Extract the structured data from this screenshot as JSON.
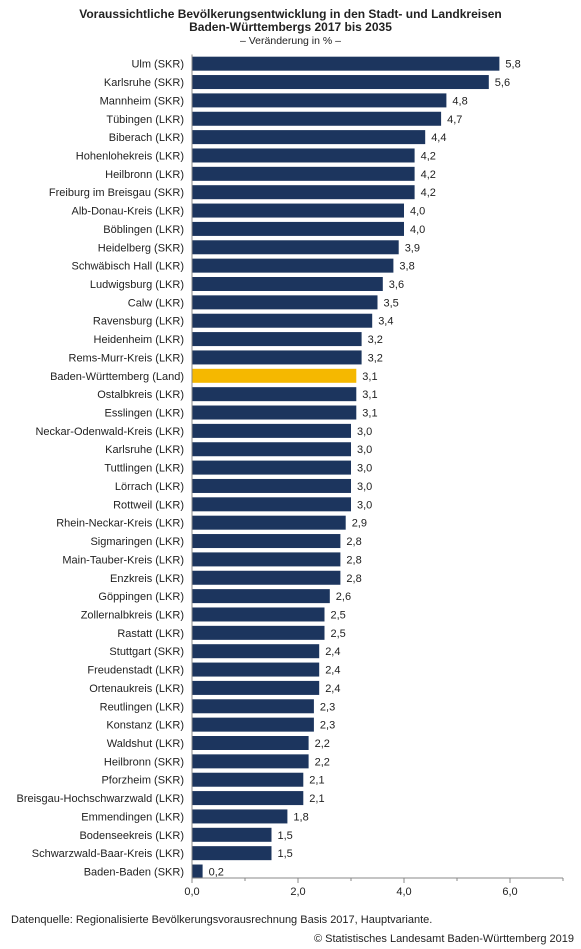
{
  "chart_data": {
    "type": "bar",
    "orientation": "horizontal",
    "title": "Voraussichtliche Bevölkerungsentwicklung in den Stadt- und Landkreisen",
    "title_line2": "Baden-Württembergs 2017 bis 2035",
    "subtitle": "– Veränderung in % –",
    "categories": [
      "Ulm (SKR)",
      "Karlsruhe (SKR)",
      "Mannheim (SKR)",
      "Tübingen (LKR)",
      "Biberach (LKR)",
      "Hohenlohekreis (LKR)",
      "Heilbronn (LKR)",
      "Freiburg im Breisgau (SKR)",
      "Alb-Donau-Kreis (LKR)",
      "Böblingen (LKR)",
      "Heidelberg (SKR)",
      "Schwäbisch Hall (LKR)",
      "Ludwigsburg (LKR)",
      "Calw (LKR)",
      "Ravensburg (LKR)",
      "Heidenheim (LKR)",
      "Rems-Murr-Kreis (LKR)",
      "Baden-Württemberg (Land)",
      "Ostalbkreis (LKR)",
      "Esslingen (LKR)",
      "Neckar-Odenwald-Kreis (LKR)",
      "Karlsruhe (LKR)",
      "Tuttlingen (LKR)",
      "Lörrach (LKR)",
      "Rottweil (LKR)",
      "Rhein-Neckar-Kreis (LKR)",
      "Sigmaringen (LKR)",
      "Main-Tauber-Kreis (LKR)",
      "Enzkreis (LKR)",
      "Göppingen (LKR)",
      "Zollernalbkreis (LKR)",
      "Rastatt (LKR)",
      "Stuttgart (SKR)",
      "Freudenstadt (LKR)",
      "Ortenaukreis (LKR)",
      "Reutlingen (LKR)",
      "Konstanz (LKR)",
      "Waldshut (LKR)",
      "Heilbronn (SKR)",
      "Pforzheim (SKR)",
      "Breisgau-Hochschwarzwald (LKR)",
      "Emmendingen (LKR)",
      "Bodenseekreis (LKR)",
      "Schwarzwald-Baar-Kreis (LKR)",
      "Baden-Baden (SKR)"
    ],
    "values": [
      5.8,
      5.6,
      4.8,
      4.7,
      4.4,
      4.2,
      4.2,
      4.2,
      4.0,
      4.0,
      3.9,
      3.8,
      3.6,
      3.5,
      3.4,
      3.2,
      3.2,
      3.1,
      3.1,
      3.1,
      3.0,
      3.0,
      3.0,
      3.0,
      3.0,
      2.9,
      2.8,
      2.8,
      2.8,
      2.6,
      2.5,
      2.5,
      2.4,
      2.4,
      2.4,
      2.3,
      2.3,
      2.2,
      2.2,
      2.1,
      2.1,
      1.8,
      1.5,
      1.5,
      0.2
    ],
    "value_labels": [
      "5,8",
      "5,6",
      "4,8",
      "4,7",
      "4,4",
      "4,2",
      "4,2",
      "4,2",
      "4,0",
      "4,0",
      "3,9",
      "3,8",
      "3,6",
      "3,5",
      "3,4",
      "3,2",
      "3,2",
      "3,1",
      "3,1",
      "3,1",
      "3,0",
      "3,0",
      "3,0",
      "3,0",
      "3,0",
      "2,9",
      "2,8",
      "2,8",
      "2,8",
      "2,6",
      "2,5",
      "2,5",
      "2,4",
      "2,4",
      "2,4",
      "2,3",
      "2,3",
      "2,2",
      "2,2",
      "2,1",
      "2,1",
      "1,8",
      "1,5",
      "1,5",
      "0,2"
    ],
    "highlight_category": "Baden-Württemberg (Land)",
    "xlim": [
      0,
      7
    ],
    "xticks": [
      0,
      2,
      4,
      6
    ],
    "xtick_labels": [
      "0,0",
      "2,0",
      "4,0",
      "6,0"
    ],
    "grid": false,
    "colors": {
      "bar": "#1c355e",
      "highlight": "#f5b800",
      "axis": "#888888",
      "text": "#222222"
    }
  },
  "footer": {
    "source": "Datenquelle: Regionalisierte Bevölkerungsvorausrechnung Basis 2017, Hauptvariante.",
    "copyright": "© Statistisches Landesamt Baden-Württemberg 2019"
  }
}
